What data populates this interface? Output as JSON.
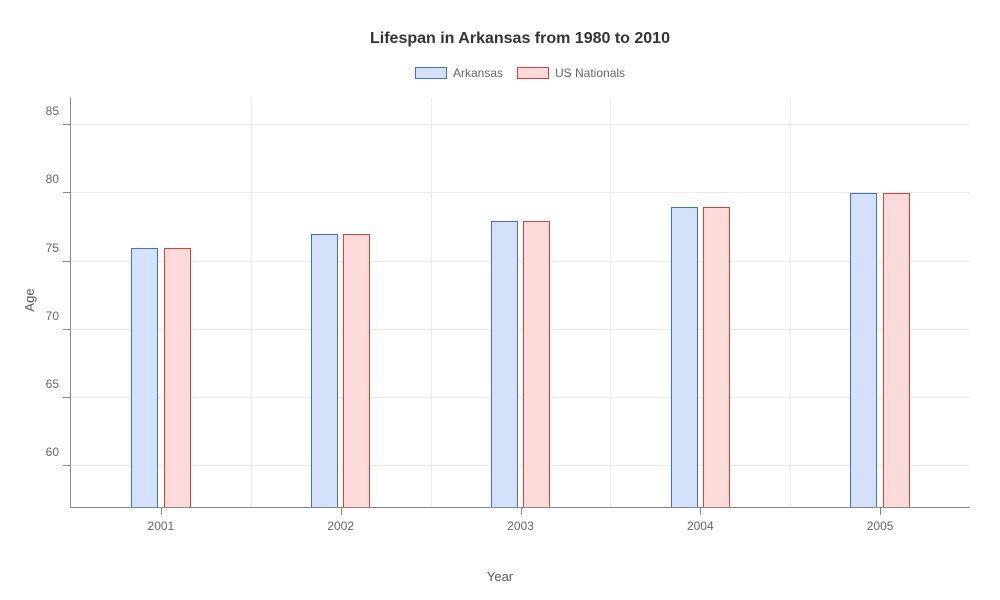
{
  "chart": {
    "type": "bar",
    "title": "Lifespan in Arkansas from 1980 to 2010",
    "title_fontsize": 16,
    "xlabel": "Year",
    "ylabel": "Age",
    "label_fontsize": 13,
    "tick_fontsize": 12,
    "categories": [
      "2001",
      "2002",
      "2003",
      "2004",
      "2005"
    ],
    "series": [
      {
        "name": "Arkansas",
        "values": [
          76,
          77,
          78,
          79,
          80
        ],
        "border_color": "#3a70e3",
        "fill_color": "#d3e1fa"
      },
      {
        "name": "US Nationals",
        "values": [
          76,
          77,
          78,
          79,
          80
        ],
        "border_color": "#e33a3a",
        "fill_color": "#fbdada"
      }
    ],
    "ylim": [
      57,
      87
    ],
    "yticks": [
      60,
      65,
      70,
      75,
      80,
      85
    ],
    "background_color": "#ffffff",
    "grid_color": "#ececec",
    "axis_color": "#888888",
    "bar_width_pct": 3.0,
    "group_gap_pct": 0.6,
    "legend_swatch_width": 32,
    "legend_swatch_height": 12
  }
}
